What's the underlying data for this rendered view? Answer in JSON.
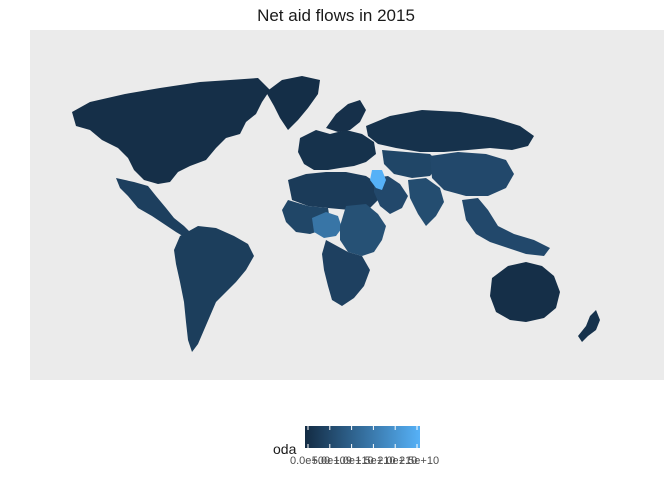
{
  "title": "Net aid flows in 2015",
  "map": {
    "background_color": "#ebebeb",
    "fill_low": "#132b43",
    "fill_high": "#56b1f7",
    "regions": [
      {
        "name": "North America",
        "level": 0.03
      },
      {
        "name": "Greenland",
        "level": 0.02
      },
      {
        "name": "Central America",
        "level": 0.15
      },
      {
        "name": "South America",
        "level": 0.14
      },
      {
        "name": "Europe",
        "level": 0.05
      },
      {
        "name": "Scandinavia",
        "level": 0.04
      },
      {
        "name": "North Africa",
        "level": 0.12
      },
      {
        "name": "West Africa",
        "level": 0.2
      },
      {
        "name": "Nigeria",
        "level": 0.55
      },
      {
        "name": "East Africa",
        "level": 0.28
      },
      {
        "name": "Southern Africa",
        "level": 0.16
      },
      {
        "name": "Middle East",
        "level": 0.22
      },
      {
        "name": "Syria/Iraq",
        "level": 1.0
      },
      {
        "name": "Russia",
        "level": 0.05
      },
      {
        "name": "Central Asia",
        "level": 0.2
      },
      {
        "name": "China",
        "level": 0.22
      },
      {
        "name": "South Asia",
        "level": 0.25
      },
      {
        "name": "Southeast Asia",
        "level": 0.22
      },
      {
        "name": "Australia",
        "level": 0.03
      },
      {
        "name": "New Zealand",
        "level": 0.05
      }
    ]
  },
  "legend": {
    "title": "oda",
    "tick_labels": [
      "0.0e+00",
      "5.0e+09",
      "1.0e+10",
      "1.5e+10",
      "2.0e+10",
      "2.5e+10"
    ],
    "color_low": "#132b43",
    "color_high": "#56b1f7"
  }
}
